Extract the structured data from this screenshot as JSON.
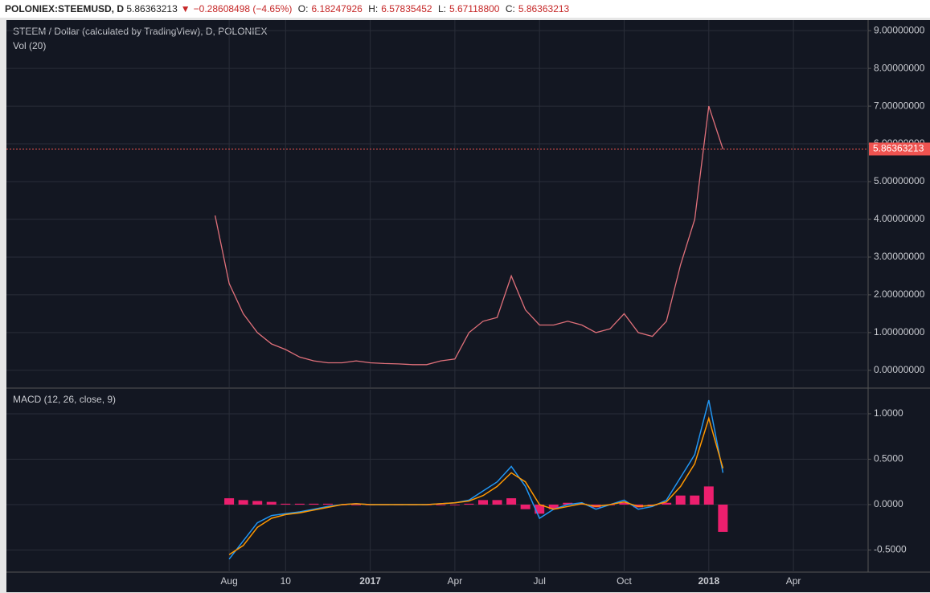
{
  "header": {
    "symbol": "POLONIEX:STEEMUSD, D",
    "last": "5.86363213",
    "arrow": "▼",
    "change": "−0.28608498 (−4.65%)",
    "open_label": "O:",
    "open": "6.18247926",
    "high_label": "H:",
    "high": "6.57835452",
    "low_label": "L:",
    "low": "5.67118800",
    "close_label": "C:",
    "close": "5.86363213"
  },
  "chart_data": [
    {
      "type": "line",
      "title": "STEEM / Dollar (calculated by TradingView), D, POLONIEX",
      "subtitle": "Vol (20)",
      "color": "#e0707a",
      "last_price": 5.86363213,
      "last_price_color": "#ef5350",
      "values": [
        null,
        4.1,
        2.3,
        1.5,
        1.0,
        0.7,
        0.55,
        0.35,
        0.25,
        0.2,
        0.2,
        0.25,
        0.2,
        0.18,
        0.17,
        0.15,
        0.15,
        0.25,
        0.3,
        1.0,
        1.3,
        1.4,
        2.5,
        1.6,
        1.2,
        1.2,
        1.3,
        1.2,
        1.0,
        1.1,
        1.5,
        1.0,
        0.9,
        1.3,
        2.8,
        4.0,
        7.0,
        5.86,
        null,
        null,
        null,
        null,
        null,
        null,
        null,
        null,
        null,
        null
      ],
      "ylim": [
        -0.45,
        9.28
      ],
      "grid": true,
      "yticks": [
        {
          "value": 0,
          "label": "0.00000000"
        },
        {
          "value": 1,
          "label": "1.00000000"
        },
        {
          "value": 2,
          "label": "2.00000000"
        },
        {
          "value": 3,
          "label": "3.00000000"
        },
        {
          "value": 4,
          "label": "4.00000000"
        },
        {
          "value": 5,
          "label": "5.00000000"
        },
        {
          "value": 6,
          "label": "6.00000000"
        },
        {
          "value": 7,
          "label": "7.00000000"
        },
        {
          "value": 8,
          "label": "8.00000000"
        },
        {
          "value": 9,
          "label": "9.00000000"
        }
      ]
    },
    {
      "type": "line",
      "title": "MACD (12, 26, close, 9)",
      "categories": [
        null,
        null,
        "Aug",
        null,
        null,
        null,
        "10",
        null,
        null,
        null,
        null,
        null,
        "2017",
        null,
        null,
        null,
        null,
        null,
        "Apr",
        null,
        null,
        null,
        null,
        null,
        "Jul",
        null,
        null,
        null,
        null,
        null,
        "Oct",
        null,
        null,
        null,
        null,
        null,
        "2018",
        null,
        null,
        null,
        null,
        null,
        "Apr",
        null,
        null,
        null,
        null,
        null
      ],
      "series": [
        {
          "color": "#ec1f6e",
          "style": "histogram",
          "values": [
            null,
            null,
            0.07,
            0.05,
            0.04,
            0.03,
            0.01,
            0.01,
            0.01,
            0.01,
            0,
            0,
            0,
            0,
            0,
            0,
            0,
            0,
            0,
            0.01,
            0.05,
            0.05,
            0.07,
            -0.05,
            -0.1,
            -0.05,
            0.02,
            0.01,
            -0.03,
            0,
            0.02,
            -0.03,
            -0.01,
            0.02,
            0.1,
            0.1,
            0.2,
            -0.3,
            null,
            null,
            null,
            null,
            null,
            null,
            null,
            null,
            null,
            null
          ]
        },
        {
          "color": "#2196f3",
          "style": "line",
          "values": [
            null,
            null,
            -0.6,
            -0.4,
            -0.2,
            -0.12,
            -0.1,
            -0.08,
            -0.05,
            -0.02,
            0,
            0.01,
            0,
            0,
            0,
            0,
            0,
            0.01,
            0.02,
            0.05,
            0.15,
            0.25,
            0.42,
            0.2,
            -0.15,
            -0.05,
            0,
            0.02,
            -0.05,
            0,
            0.05,
            -0.05,
            -0.02,
            0.05,
            0.3,
            0.55,
            1.15,
            0.35,
            null,
            null,
            null,
            null,
            null,
            null,
            null,
            null,
            null,
            null
          ]
        },
        {
          "color": "#ff9800",
          "style": "line",
          "values": [
            null,
            null,
            -0.55,
            -0.45,
            -0.25,
            -0.15,
            -0.11,
            -0.09,
            -0.06,
            -0.03,
            0,
            0.01,
            0,
            0,
            0,
            0,
            0,
            0.01,
            0.02,
            0.04,
            0.1,
            0.2,
            0.35,
            0.25,
            0,
            -0.05,
            -0.02,
            0.01,
            -0.02,
            0,
            0.03,
            -0.02,
            -0.01,
            0.03,
            0.2,
            0.45,
            0.95,
            0.4,
            null,
            null,
            null,
            null,
            null,
            null,
            null,
            null,
            null,
            null
          ]
        }
      ],
      "ylim": [
        -0.743,
        1.265
      ],
      "grid": true,
      "yticks": [
        {
          "value": 1,
          "label": "1.0000"
        },
        {
          "value": 0.5,
          "label": "0.5000"
        },
        {
          "value": 0,
          "label": "0.0000"
        },
        {
          "value": -0.5,
          "label": "-0.5000"
        }
      ]
    }
  ]
}
